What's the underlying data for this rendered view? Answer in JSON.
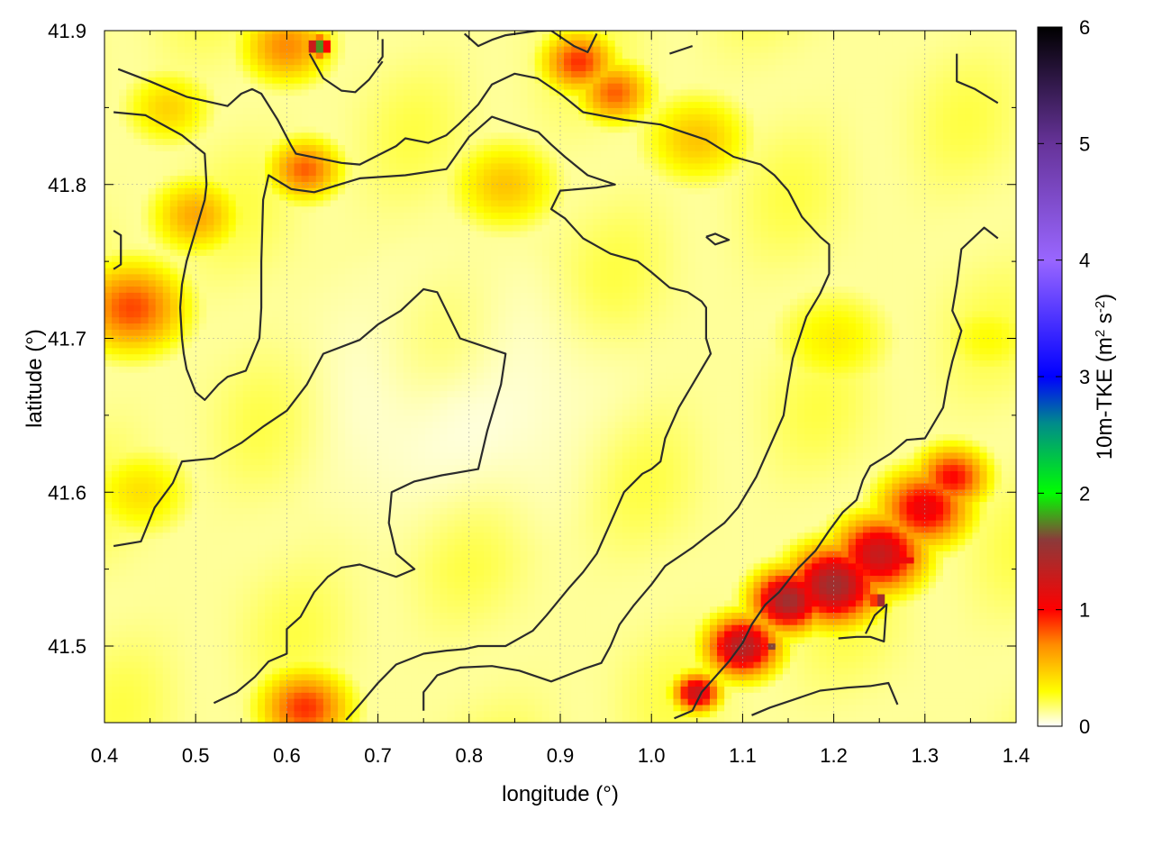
{
  "chart_data": {
    "type": "heatmap",
    "title": "",
    "xlabel": "longitude (°)",
    "ylabel": "latitude (°)",
    "xlim": [
      0.4,
      1.4
    ],
    "ylim": [
      41.45,
      41.9
    ],
    "x_ticks": [
      "0.4",
      "0.5",
      "0.6",
      "0.7",
      "0.8",
      "0.9",
      "1.0",
      "1.1",
      "1.2",
      "1.3",
      "1.4"
    ],
    "y_ticks": [
      "41.5",
      "41.6",
      "41.7",
      "41.8",
      "41.9"
    ],
    "grid": true,
    "colorbar": {
      "label_main": "10m-TKE (m",
      "label_sup1": "2",
      "label_mid": " s",
      "label_sup2": "-2",
      "label_end": ")",
      "range": [
        0,
        6
      ],
      "ticks": [
        "0",
        "1",
        "2",
        "3",
        "4",
        "5",
        "6"
      ],
      "colors": [
        {
          "v": 0.0,
          "c": "#ffffff"
        },
        {
          "v": 0.3,
          "c": "#ffff00"
        },
        {
          "v": 0.7,
          "c": "#ff8c00"
        },
        {
          "v": 1.0,
          "c": "#ff0000"
        },
        {
          "v": 1.6,
          "c": "#8b3a3a"
        },
        {
          "v": 2.0,
          "c": "#00ff00"
        },
        {
          "v": 2.6,
          "c": "#008b8b"
        },
        {
          "v": 3.0,
          "c": "#0000ff"
        },
        {
          "v": 4.0,
          "c": "#9966ff"
        },
        {
          "v": 5.0,
          "c": "#663399"
        },
        {
          "v": 6.0,
          "c": "#000000"
        }
      ]
    },
    "hotspots": [
      {
        "x": 0.43,
        "y": 41.72,
        "r": 0.06,
        "v": 0.85
      },
      {
        "x": 0.5,
        "y": 41.78,
        "r": 0.05,
        "v": 0.6
      },
      {
        "x": 0.47,
        "y": 41.85,
        "r": 0.05,
        "v": 0.45
      },
      {
        "x": 0.62,
        "y": 41.81,
        "r": 0.04,
        "v": 0.8
      },
      {
        "x": 0.6,
        "y": 41.89,
        "r": 0.05,
        "v": 0.7
      },
      {
        "x": 0.635,
        "y": 41.89,
        "r": 0.012,
        "v": 2.0
      },
      {
        "x": 0.92,
        "y": 41.88,
        "r": 0.04,
        "v": 0.9
      },
      {
        "x": 0.96,
        "y": 41.86,
        "r": 0.04,
        "v": 0.8
      },
      {
        "x": 1.05,
        "y": 41.83,
        "r": 0.06,
        "v": 0.5
      },
      {
        "x": 0.84,
        "y": 41.8,
        "r": 0.06,
        "v": 0.5
      },
      {
        "x": 1.2,
        "y": 41.7,
        "r": 0.07,
        "v": 0.35
      },
      {
        "x": 0.44,
        "y": 41.6,
        "r": 0.06,
        "v": 0.4
      },
      {
        "x": 0.62,
        "y": 41.46,
        "r": 0.05,
        "v": 0.9
      },
      {
        "x": 1.05,
        "y": 41.47,
        "r": 0.025,
        "v": 1.3
      },
      {
        "x": 1.1,
        "y": 41.5,
        "r": 0.04,
        "v": 1.4
      },
      {
        "x": 1.15,
        "y": 41.53,
        "r": 0.04,
        "v": 1.5
      },
      {
        "x": 1.2,
        "y": 41.54,
        "r": 0.05,
        "v": 1.5
      },
      {
        "x": 1.25,
        "y": 41.56,
        "r": 0.05,
        "v": 1.3
      },
      {
        "x": 1.3,
        "y": 41.59,
        "r": 0.05,
        "v": 1.1
      },
      {
        "x": 1.33,
        "y": 41.61,
        "r": 0.04,
        "v": 1.0
      },
      {
        "x": 1.25,
        "y": 41.53,
        "r": 0.008,
        "v": 2.0
      },
      {
        "x": 1.28,
        "y": 41.555,
        "r": 0.006,
        "v": 1.9
      },
      {
        "x": 1.13,
        "y": 41.5,
        "r": 0.005,
        "v": 1.9
      },
      {
        "x": 1.37,
        "y": 41.7,
        "r": 0.06,
        "v": 0.3
      }
    ],
    "contours": [
      [
        [
          0.415,
          41.875
        ],
        [
          0.45,
          41.867
        ],
        [
          0.49,
          41.857
        ],
        [
          0.535,
          41.851
        ],
        [
          0.55,
          41.859
        ],
        [
          0.562,
          41.862
        ],
        [
          0.572,
          41.859
        ],
        [
          0.59,
          41.842
        ],
        [
          0.605,
          41.825
        ],
        [
          0.61,
          41.82
        ],
        [
          0.66,
          41.814
        ],
        [
          0.68,
          41.813
        ],
        [
          0.72,
          41.825
        ],
        [
          0.73,
          41.83
        ],
        [
          0.755,
          41.827
        ],
        [
          0.775,
          41.832
        ],
        [
          0.79,
          41.84
        ],
        [
          0.81,
          41.852
        ],
        [
          0.825,
          41.865
        ],
        [
          0.85,
          41.872
        ],
        [
          0.875,
          41.869
        ],
        [
          0.9,
          41.859
        ],
        [
          0.925,
          41.847
        ],
        [
          0.97,
          41.842
        ],
        [
          1.01,
          41.839
        ],
        [
          1.06,
          41.829
        ],
        [
          1.09,
          41.818
        ],
        [
          1.12,
          41.813
        ],
        [
          1.135,
          41.806
        ],
        [
          1.15,
          41.796
        ],
        [
          1.165,
          41.779
        ],
        [
          1.185,
          41.766
        ],
        [
          1.195,
          41.761
        ],
        [
          1.195,
          41.742
        ],
        [
          1.185,
          41.729
        ],
        [
          1.17,
          41.714
        ],
        [
          1.155,
          41.687
        ],
        [
          1.15,
          41.67
        ],
        [
          1.145,
          41.65
        ],
        [
          1.13,
          41.63
        ],
        [
          1.115,
          41.61
        ],
        [
          1.105,
          41.6
        ],
        [
          1.095,
          41.59
        ],
        [
          1.08,
          41.58
        ],
        [
          1.06,
          41.571
        ],
        [
          1.045,
          41.564
        ],
        [
          1.015,
          41.552
        ],
        [
          1.0,
          41.54
        ],
        [
          0.98,
          41.526
        ],
        [
          0.965,
          41.514
        ],
        [
          0.955,
          41.5
        ],
        [
          0.945,
          41.489
        ],
        [
          0.925,
          41.485
        ],
        [
          0.89,
          41.477
        ],
        [
          0.855,
          41.484
        ],
        [
          0.825,
          41.487
        ],
        [
          0.79,
          41.486
        ],
        [
          0.765,
          41.481
        ],
        [
          0.75,
          41.47
        ],
        [
          0.75,
          41.458
        ]
      ],
      [
        [
          0.41,
          41.847
        ],
        [
          0.445,
          41.845
        ],
        [
          0.485,
          41.832
        ],
        [
          0.51,
          41.82
        ],
        [
          0.512,
          41.8
        ],
        [
          0.51,
          41.79
        ],
        [
          0.5,
          41.77
        ],
        [
          0.49,
          41.75
        ],
        [
          0.485,
          41.735
        ],
        [
          0.483,
          41.72
        ],
        [
          0.485,
          41.7
        ],
        [
          0.487,
          41.69
        ],
        [
          0.49,
          41.68
        ],
        [
          0.5,
          41.665
        ],
        [
          0.51,
          41.66
        ],
        [
          0.525,
          41.67
        ],
        [
          0.535,
          41.675
        ],
        [
          0.555,
          41.679
        ],
        [
          0.57,
          41.7
        ],
        [
          0.572,
          41.72
        ],
        [
          0.572,
          41.75
        ],
        [
          0.574,
          41.79
        ],
        [
          0.58,
          41.806
        ],
        [
          0.605,
          41.797
        ],
        [
          0.63,
          41.795
        ],
        [
          0.68,
          41.804
        ],
        [
          0.73,
          41.806
        ],
        [
          0.775,
          41.81
        ],
        [
          0.8,
          41.831
        ],
        [
          0.825,
          41.844
        ],
        [
          0.86,
          41.837
        ],
        [
          0.876,
          41.834
        ],
        [
          0.89,
          41.826
        ],
        [
          0.905,
          41.818
        ],
        [
          0.93,
          41.806
        ],
        [
          0.96,
          41.8
        ],
        [
          0.94,
          41.798
        ],
        [
          0.9,
          41.796
        ],
        [
          0.89,
          41.784
        ],
        [
          0.905,
          41.778
        ],
        [
          0.925,
          41.765
        ],
        [
          0.94,
          41.76
        ],
        [
          0.955,
          41.755
        ],
        [
          0.985,
          41.75
        ],
        [
          1.0,
          41.743
        ],
        [
          1.02,
          41.733
        ],
        [
          1.04,
          41.73
        ],
        [
          1.055,
          41.724
        ],
        [
          1.06,
          41.72
        ],
        [
          1.06,
          41.7
        ],
        [
          1.065,
          41.69
        ],
        [
          1.055,
          41.68
        ],
        [
          1.03,
          41.655
        ],
        [
          1.015,
          41.635
        ],
        [
          1.01,
          41.62
        ],
        [
          1.0,
          41.615
        ],
        [
          0.99,
          41.612
        ],
        [
          0.97,
          41.6
        ],
        [
          0.955,
          41.58
        ],
        [
          0.94,
          41.56
        ],
        [
          0.925,
          41.548
        ],
        [
          0.91,
          41.538
        ],
        [
          0.885,
          41.52
        ],
        [
          0.87,
          41.51
        ],
        [
          0.84,
          41.5
        ],
        [
          0.81,
          41.5
        ],
        [
          0.795,
          41.498
        ],
        [
          0.775,
          41.497
        ],
        [
          0.75,
          41.495
        ],
        [
          0.72,
          41.488
        ],
        [
          0.7,
          41.476
        ],
        [
          0.68,
          41.462
        ],
        [
          0.665,
          41.452
        ]
      ],
      [
        [
          0.41,
          41.565
        ],
        [
          0.44,
          41.568
        ],
        [
          0.455,
          41.59
        ],
        [
          0.475,
          41.606
        ],
        [
          0.485,
          41.62
        ],
        [
          0.52,
          41.622
        ],
        [
          0.55,
          41.632
        ],
        [
          0.575,
          41.643
        ],
        [
          0.6,
          41.653
        ],
        [
          0.622,
          41.67
        ],
        [
          0.64,
          41.69
        ],
        [
          0.68,
          41.699
        ],
        [
          0.7,
          41.709
        ],
        [
          0.725,
          41.718
        ],
        [
          0.75,
          41.732
        ],
        [
          0.765,
          41.73
        ],
        [
          0.79,
          41.7
        ],
        [
          0.84,
          41.69
        ],
        [
          0.835,
          41.67
        ],
        [
          0.82,
          41.64
        ],
        [
          0.81,
          41.615
        ],
        [
          0.77,
          41.611
        ],
        [
          0.74,
          41.607
        ],
        [
          0.715,
          41.6
        ],
        [
          0.712,
          41.58
        ],
        [
          0.72,
          41.56
        ],
        [
          0.74,
          41.55
        ],
        [
          0.72,
          41.545
        ],
        [
          0.68,
          41.553
        ],
        [
          0.66,
          41.551
        ],
        [
          0.645,
          41.545
        ],
        [
          0.63,
          41.535
        ],
        [
          0.615,
          41.519
        ],
        [
          0.6,
          41.511
        ],
        [
          0.6,
          41.495
        ],
        [
          0.58,
          41.49
        ],
        [
          0.565,
          41.48
        ],
        [
          0.545,
          41.47
        ],
        [
          0.52,
          41.463
        ]
      ],
      [
        [
          1.06,
          41.766
        ],
        [
          1.07,
          41.768
        ],
        [
          1.085,
          41.764
        ],
        [
          1.07,
          41.761
        ],
        [
          1.06,
          41.766
        ]
      ],
      [
        [
          0.41,
          41.77
        ],
        [
          0.418,
          41.767
        ],
        [
          0.418,
          41.755
        ],
        [
          0.418,
          41.748
        ],
        [
          0.41,
          41.745
        ]
      ],
      [
        [
          0.625,
          41.885
        ],
        [
          0.64,
          41.869
        ],
        [
          0.66,
          41.861
        ],
        [
          0.675,
          41.86
        ],
        [
          0.69,
          41.868
        ],
        [
          0.705,
          41.88
        ]
      ],
      [
        [
          0.705,
          41.8945
        ],
        [
          0.705,
          41.883
        ],
        [
          0.7,
          41.879
        ]
      ],
      [
        [
          0.795,
          41.898
        ],
        [
          0.81,
          41.89
        ],
        [
          0.825,
          41.894
        ],
        [
          0.84,
          41.897
        ],
        [
          0.875,
          41.9
        ],
        [
          0.89,
          41.9
        ],
        [
          0.915,
          41.89
        ],
        [
          0.93,
          41.886
        ],
        [
          0.94,
          41.898
        ]
      ],
      [
        [
          1.02,
          41.885
        ],
        [
          1.035,
          41.888
        ],
        [
          1.045,
          41.89
        ]
      ],
      [
        [
          1.335,
          41.885
        ],
        [
          1.335,
          41.867
        ],
        [
          1.355,
          41.862
        ],
        [
          1.38,
          41.853
        ]
      ],
      [
        [
          1.38,
          41.765
        ],
        [
          1.365,
          41.772
        ],
        [
          1.34,
          41.758
        ],
        [
          1.335,
          41.735
        ],
        [
          1.33,
          41.718
        ],
        [
          1.34,
          41.705
        ],
        [
          1.33,
          41.685
        ],
        [
          1.325,
          41.672
        ],
        [
          1.32,
          41.655
        ],
        [
          1.3,
          41.635
        ],
        [
          1.28,
          41.634
        ],
        [
          1.262,
          41.625
        ],
        [
          1.24,
          41.617
        ],
        [
          1.232,
          41.608
        ],
        [
          1.225,
          41.595
        ],
        [
          1.21,
          41.587
        ],
        [
          1.195,
          41.575
        ],
        [
          1.18,
          41.562
        ],
        [
          1.16,
          41.55
        ],
        [
          1.14,
          41.535
        ],
        [
          1.125,
          41.527
        ],
        [
          1.11,
          41.514
        ],
        [
          1.1,
          41.502
        ],
        [
          1.085,
          41.49
        ],
        [
          1.07,
          41.48
        ],
        [
          1.055,
          41.47
        ],
        [
          1.045,
          41.458
        ],
        [
          1.025,
          41.453
        ]
      ],
      [
        [
          1.11,
          41.455
        ],
        [
          1.13,
          41.46
        ],
        [
          1.155,
          41.465
        ],
        [
          1.185,
          41.471
        ],
        [
          1.2,
          41.472
        ],
        [
          1.215,
          41.473
        ],
        [
          1.24,
          41.474
        ],
        [
          1.26,
          41.476
        ],
        [
          1.27,
          41.462
        ]
      ],
      [
        [
          1.205,
          41.505
        ],
        [
          1.225,
          41.506
        ],
        [
          1.24,
          41.506
        ],
        [
          1.255,
          41.503
        ],
        [
          1.257,
          41.52
        ],
        [
          1.258,
          41.527
        ],
        [
          1.245,
          41.52
        ],
        [
          1.235,
          41.508
        ]
      ]
    ]
  }
}
